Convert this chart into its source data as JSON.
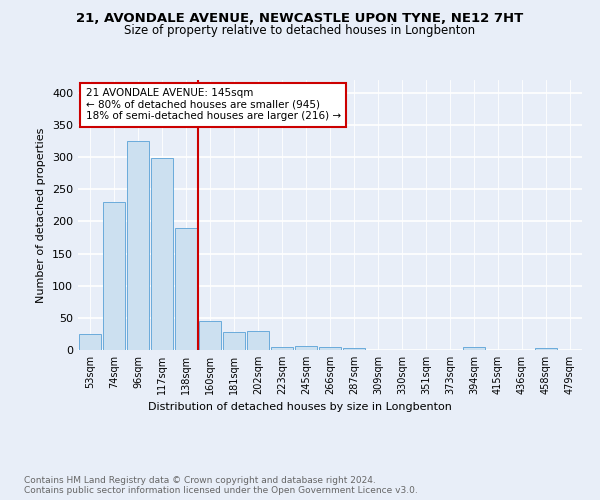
{
  "title1": "21, AVONDALE AVENUE, NEWCASTLE UPON TYNE, NE12 7HT",
  "title2": "Size of property relative to detached houses in Longbenton",
  "xlabel": "Distribution of detached houses by size in Longbenton",
  "ylabel": "Number of detached properties",
  "bin_labels": [
    "53sqm",
    "74sqm",
    "96sqm",
    "117sqm",
    "138sqm",
    "160sqm",
    "181sqm",
    "202sqm",
    "223sqm",
    "245sqm",
    "266sqm",
    "287sqm",
    "309sqm",
    "330sqm",
    "351sqm",
    "373sqm",
    "394sqm",
    "415sqm",
    "436sqm",
    "458sqm",
    "479sqm"
  ],
  "bar_heights": [
    25,
    230,
    325,
    298,
    190,
    45,
    28,
    29,
    5,
    6,
    5,
    3,
    0,
    0,
    0,
    0,
    5,
    0,
    0,
    3,
    0
  ],
  "bar_color": "#cce0f0",
  "bar_edge_color": "#6aabdb",
  "vline_x": 4.5,
  "vline_color": "#cc0000",
  "annotation_text": "21 AVONDALE AVENUE: 145sqm\n← 80% of detached houses are smaller (945)\n18% of semi-detached houses are larger (216) →",
  "annotation_box_color": "white",
  "annotation_box_edge": "#cc0000",
  "footnote": "Contains HM Land Registry data © Crown copyright and database right 2024.\nContains public sector information licensed under the Open Government Licence v3.0.",
  "ylim": [
    0,
    420
  ],
  "yticks": [
    0,
    50,
    100,
    150,
    200,
    250,
    300,
    350,
    400
  ],
  "background_color": "#e8eef8"
}
